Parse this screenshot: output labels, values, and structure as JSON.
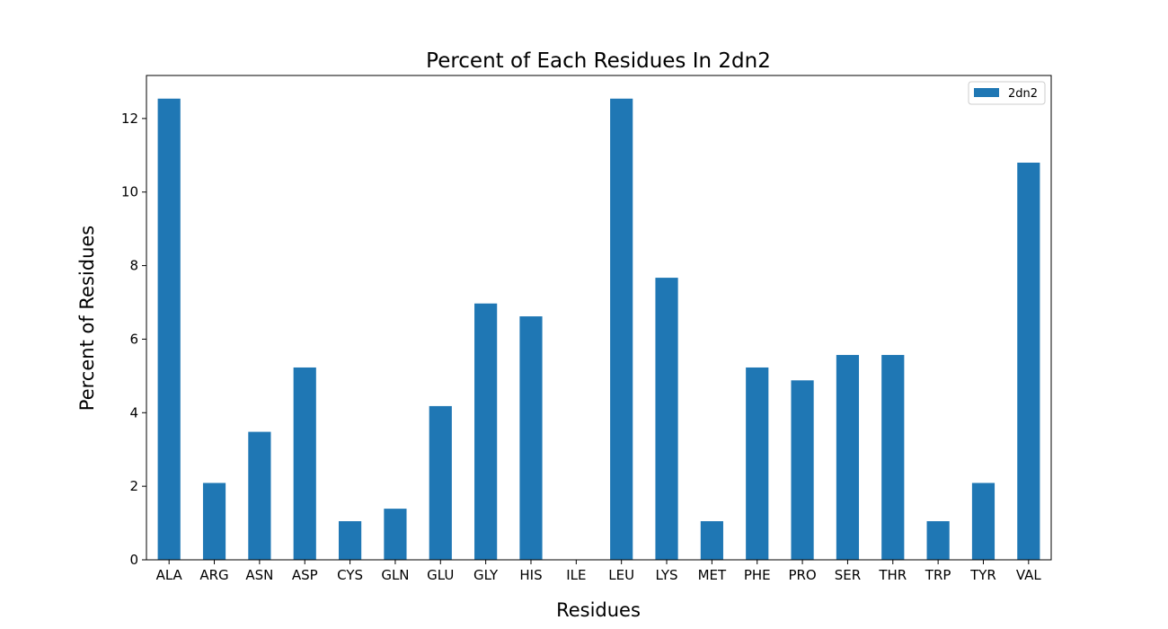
{
  "chart_data": {
    "type": "bar",
    "title": "Percent of Each Residues In 2dn2",
    "xlabel": "Residues",
    "ylabel": "Percent of Residues",
    "categories": [
      "ALA",
      "ARG",
      "ASN",
      "ASP",
      "CYS",
      "GLN",
      "GLU",
      "GLY",
      "HIS",
      "ILE",
      "LEU",
      "LYS",
      "MET",
      "PHE",
      "PRO",
      "SER",
      "THR",
      "TRP",
      "TYR",
      "VAL"
    ],
    "series": [
      {
        "name": "2dn2",
        "color": "#1f77b4",
        "values": [
          12.54,
          2.09,
          3.48,
          5.23,
          1.05,
          1.39,
          4.18,
          6.97,
          6.62,
          0.0,
          12.54,
          7.67,
          1.05,
          5.23,
          4.88,
          5.57,
          5.57,
          1.05,
          2.09,
          10.8
        ]
      }
    ],
    "ylim": [
      0,
      13.17
    ],
    "yticks": [
      0,
      2,
      4,
      6,
      8,
      10,
      12
    ],
    "grid": false,
    "legend_position": "top-right"
  }
}
